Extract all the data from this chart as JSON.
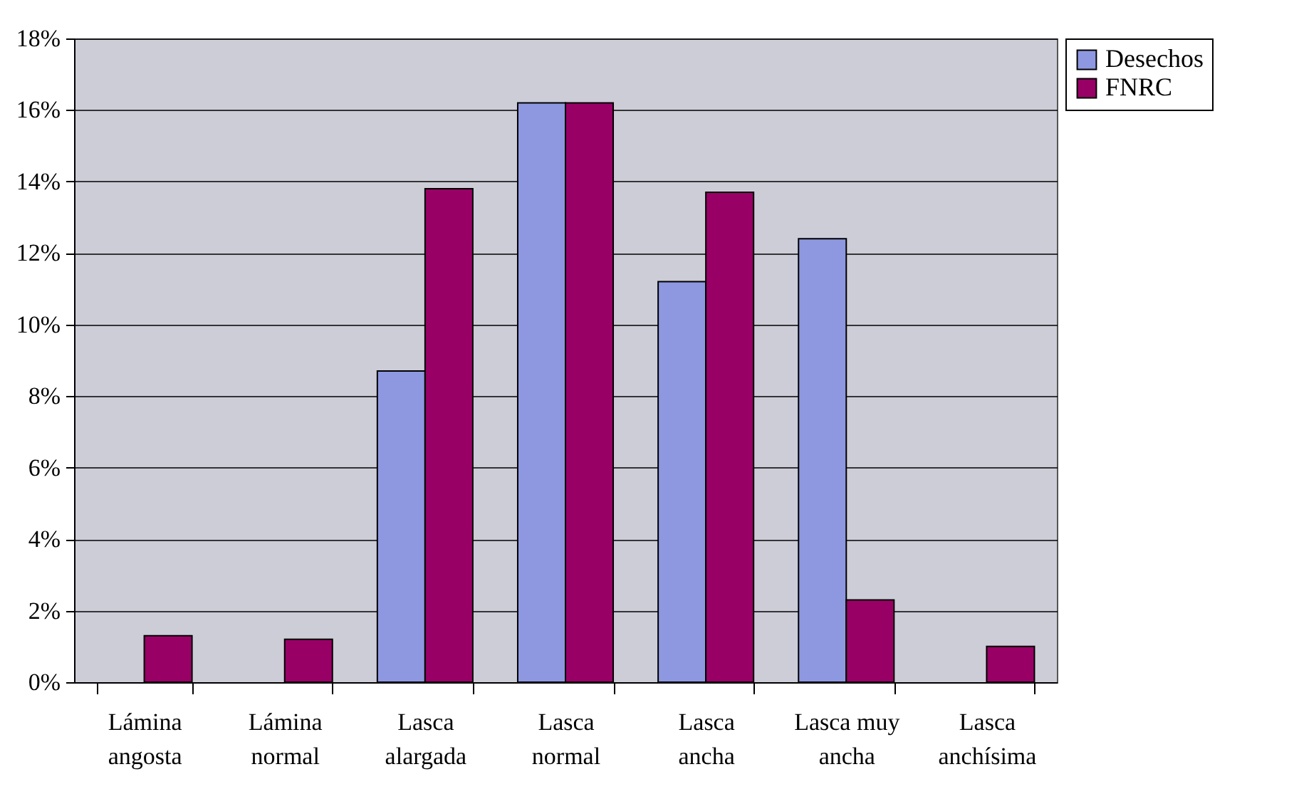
{
  "chart_data": {
    "type": "bar",
    "categories": [
      "Lámina angosta",
      "Lámina normal",
      "Lasca alargada",
      "Lasca normal",
      "Lasca ancha",
      "Lasca muy ancha",
      "Lasca anchísima"
    ],
    "series": [
      {
        "name": "Desechos",
        "color": "#8e98e0",
        "values": [
          null,
          null,
          8.7,
          16.2,
          11.2,
          12.4,
          null
        ]
      },
      {
        "name": "FNRC",
        "color": "#990066",
        "values": [
          1.3,
          1.2,
          13.8,
          16.2,
          13.7,
          2.3,
          1.0
        ]
      }
    ],
    "ylim": [
      0,
      18
    ],
    "yticks": [
      {
        "value": 0,
        "label": "0%"
      },
      {
        "value": 2,
        "label": "2%"
      },
      {
        "value": 4,
        "label": "4%"
      },
      {
        "value": 6,
        "label": "6%"
      },
      {
        "value": 8,
        "label": "8%"
      },
      {
        "value": 10,
        "label": "10%"
      },
      {
        "value": 12,
        "label": "12%"
      },
      {
        "value": 14,
        "label": "14%"
      },
      {
        "value": 16,
        "label": "16%"
      },
      {
        "value": 18,
        "label": "18%"
      }
    ],
    "grid": "y",
    "legend": "right"
  }
}
